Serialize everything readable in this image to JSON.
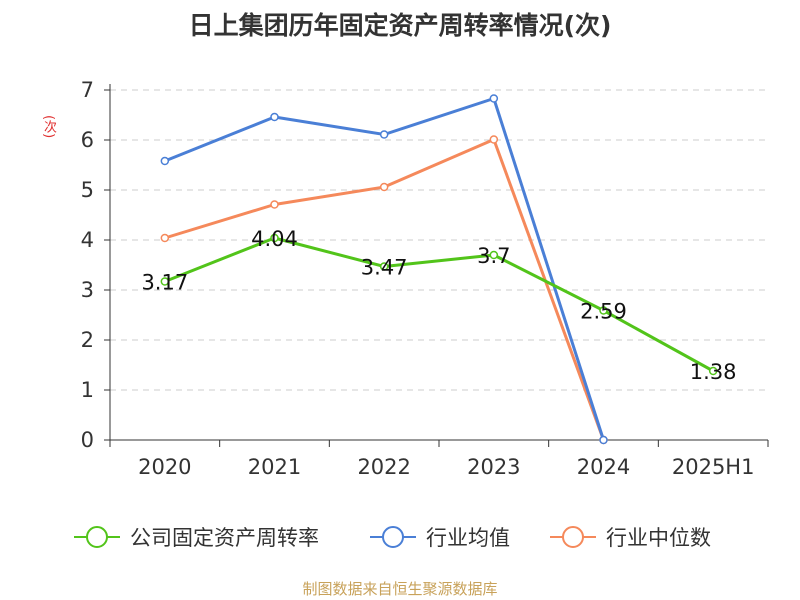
{
  "chart_data": {
    "type": "line",
    "title": "日上集团历年固定资产周转率情况(次)",
    "ylabel": "(次)",
    "categories": [
      "2020",
      "2021",
      "2022",
      "2023",
      "2024",
      "2025H1"
    ],
    "ylim": [
      0,
      7
    ],
    "yticks": [
      0,
      1,
      2,
      3,
      4,
      5,
      6,
      7
    ],
    "grid": true,
    "legend_position": "bottom",
    "series": [
      {
        "name": "公司固定资产周转率",
        "color": "#52c41a",
        "values": [
          3.17,
          4.04,
          3.47,
          3.7,
          2.59,
          1.38
        ],
        "labels": [
          "3.17",
          "4.04",
          "3.47",
          "3.7",
          "2.59",
          "1.38"
        ]
      },
      {
        "name": "行业均值",
        "color": "#4a7fd6",
        "values": [
          5.58,
          6.46,
          6.11,
          6.83,
          0,
          null
        ]
      },
      {
        "name": "行业中位数",
        "color": "#f5895b",
        "values": [
          4.04,
          4.71,
          5.06,
          6.01,
          0,
          null
        ]
      }
    ]
  },
  "source_note": "制图数据来自恒生聚源数据库"
}
